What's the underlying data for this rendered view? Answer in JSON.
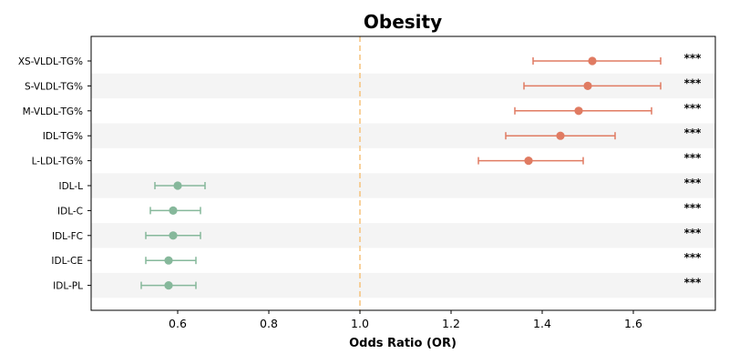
{
  "chart_data": {
    "type": "scatter",
    "subtype": "forest-plot",
    "title": "Obesity",
    "xlabel": "Odds Ratio (OR)",
    "ylabel": "",
    "xlim": [
      0.41,
      1.78
    ],
    "xticks": [
      0.6,
      0.8,
      1.0,
      1.2,
      1.4,
      1.6
    ],
    "xtick_labels": [
      "0.6",
      "0.8",
      "1.0",
      "1.2",
      "1.4",
      "1.6"
    ],
    "reference_line": {
      "x": 1.0,
      "style": "dashed",
      "color": "#f5c27a"
    },
    "grid": false,
    "alternating_row_shading": true,
    "colors": {
      "increased": "#e07b62",
      "decreased": "#86b89b",
      "row_band": "#f4f4f4"
    },
    "items": [
      {
        "label": "XS-VLDL-TG%",
        "or": 1.51,
        "ci_low": 1.38,
        "ci_high": 1.66,
        "sig": "***",
        "group": "increased"
      },
      {
        "label": "S-VLDL-TG%",
        "or": 1.5,
        "ci_low": 1.36,
        "ci_high": 1.66,
        "sig": "***",
        "group": "increased"
      },
      {
        "label": "M-VLDL-TG%",
        "or": 1.48,
        "ci_low": 1.34,
        "ci_high": 1.64,
        "sig": "***",
        "group": "increased"
      },
      {
        "label": "IDL-TG%",
        "or": 1.44,
        "ci_low": 1.32,
        "ci_high": 1.56,
        "sig": "***",
        "group": "increased"
      },
      {
        "label": "L-LDL-TG%",
        "or": 1.37,
        "ci_low": 1.26,
        "ci_high": 1.49,
        "sig": "***",
        "group": "increased"
      },
      {
        "label": "IDL-L",
        "or": 0.6,
        "ci_low": 0.55,
        "ci_high": 0.66,
        "sig": "***",
        "group": "decreased"
      },
      {
        "label": "IDL-C",
        "or": 0.59,
        "ci_low": 0.54,
        "ci_high": 0.65,
        "sig": "***",
        "group": "decreased"
      },
      {
        "label": "IDL-FC",
        "or": 0.59,
        "ci_low": 0.53,
        "ci_high": 0.65,
        "sig": "***",
        "group": "decreased"
      },
      {
        "label": "IDL-CE",
        "or": 0.58,
        "ci_low": 0.53,
        "ci_high": 0.64,
        "sig": "***",
        "group": "decreased"
      },
      {
        "label": "IDL-PL",
        "or": 0.58,
        "ci_low": 0.52,
        "ci_high": 0.64,
        "sig": "***",
        "group": "decreased"
      }
    ]
  }
}
